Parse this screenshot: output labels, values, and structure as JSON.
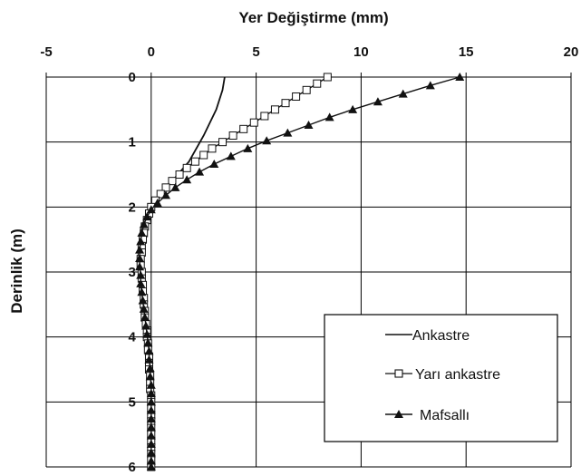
{
  "chart_data": {
    "type": "line",
    "title": "",
    "xlabel": "Yer Değiştirme (mm)",
    "ylabel": "Derinlik (m)",
    "xlim": [
      -5,
      20
    ],
    "ylim": [
      0,
      6
    ],
    "y_inverted": true,
    "x_axis_position": "top",
    "grid": true,
    "x_ticks": [
      -5,
      0,
      5,
      10,
      15,
      20
    ],
    "y_ticks": [
      0,
      1,
      2,
      3,
      4,
      5,
      6
    ],
    "x_tick_labels": [
      "-5",
      "0",
      "5",
      "10",
      "15",
      "20"
    ],
    "y_tick_labels": [
      "0",
      "1",
      "2",
      "3",
      "4",
      "5",
      "6"
    ],
    "legend": {
      "position": "bottom-right",
      "entries": [
        "Ankastre",
        "Yarı ankastre",
        "Mafsallı"
      ]
    },
    "colors": {
      "line": "#111111",
      "grid": "#000000",
      "background": "#ffffff"
    },
    "series": [
      {
        "name": "Ankastre",
        "marker": "none",
        "points": [
          [
            3.5,
            0
          ],
          [
            3.4,
            0.2
          ],
          [
            3.1,
            0.5
          ],
          [
            2.5,
            0.9
          ],
          [
            1.8,
            1.3
          ],
          [
            1.0,
            1.6
          ],
          [
            0.4,
            1.85
          ],
          [
            0.0,
            2.0
          ],
          [
            -0.3,
            2.2
          ],
          [
            -0.5,
            2.5
          ],
          [
            -0.5,
            2.8
          ],
          [
            -0.4,
            3.1
          ],
          [
            -0.3,
            3.5
          ],
          [
            -0.15,
            4.0
          ],
          [
            -0.05,
            4.5
          ],
          [
            0.0,
            5.0
          ],
          [
            0.0,
            5.5
          ],
          [
            0.0,
            6.0
          ]
        ]
      },
      {
        "name": "Yarı ankastre",
        "marker": "open-square",
        "points": [
          [
            8.4,
            0
          ],
          [
            7.9,
            0.1
          ],
          [
            7.4,
            0.2
          ],
          [
            6.9,
            0.3
          ],
          [
            6.4,
            0.4
          ],
          [
            5.9,
            0.5
          ],
          [
            5.4,
            0.6
          ],
          [
            4.9,
            0.7
          ],
          [
            4.4,
            0.8
          ],
          [
            3.9,
            0.9
          ],
          [
            3.4,
            1.0
          ],
          [
            2.9,
            1.1
          ],
          [
            2.5,
            1.2
          ],
          [
            2.1,
            1.3
          ],
          [
            1.7,
            1.4
          ],
          [
            1.35,
            1.5
          ],
          [
            1.0,
            1.6
          ],
          [
            0.7,
            1.7
          ],
          [
            0.45,
            1.8
          ],
          [
            0.2,
            1.9
          ],
          [
            0.0,
            2.0
          ],
          [
            -0.1,
            2.1
          ],
          [
            -0.2,
            2.2
          ],
          [
            -0.3,
            2.3
          ],
          [
            -0.35,
            2.4
          ],
          [
            -0.4,
            2.5
          ],
          [
            -0.45,
            2.6
          ],
          [
            -0.45,
            2.7
          ],
          [
            -0.5,
            2.8
          ],
          [
            -0.5,
            2.9
          ],
          [
            -0.45,
            3.0
          ],
          [
            -0.45,
            3.1
          ],
          [
            -0.4,
            3.2
          ],
          [
            -0.4,
            3.3
          ],
          [
            -0.35,
            3.4
          ],
          [
            -0.35,
            3.5
          ],
          [
            -0.3,
            3.6
          ],
          [
            -0.3,
            3.7
          ],
          [
            -0.25,
            3.8
          ],
          [
            -0.2,
            3.9
          ],
          [
            -0.2,
            4.0
          ],
          [
            -0.15,
            4.1
          ],
          [
            -0.15,
            4.2
          ],
          [
            -0.1,
            4.3
          ],
          [
            -0.1,
            4.4
          ],
          [
            -0.1,
            4.5
          ],
          [
            -0.05,
            4.6
          ],
          [
            -0.05,
            4.7
          ],
          [
            -0.05,
            4.8
          ],
          [
            0.0,
            4.9
          ],
          [
            0.0,
            5.0
          ],
          [
            0.0,
            5.1
          ],
          [
            0.0,
            5.2
          ],
          [
            0.0,
            5.3
          ],
          [
            0.0,
            5.4
          ],
          [
            0.0,
            5.5
          ],
          [
            0.0,
            5.6
          ],
          [
            0.0,
            5.7
          ],
          [
            0.0,
            5.8
          ],
          [
            0.0,
            5.9
          ],
          [
            0.0,
            6.0
          ]
        ]
      },
      {
        "name": "Mafsallı",
        "marker": "filled-triangle",
        "points": [
          [
            14.7,
            0
          ],
          [
            13.3,
            0.13
          ],
          [
            12.0,
            0.26
          ],
          [
            10.8,
            0.38
          ],
          [
            9.6,
            0.5
          ],
          [
            8.5,
            0.62
          ],
          [
            7.5,
            0.74
          ],
          [
            6.5,
            0.86
          ],
          [
            5.5,
            0.98
          ],
          [
            4.6,
            1.1
          ],
          [
            3.8,
            1.22
          ],
          [
            3.0,
            1.34
          ],
          [
            2.3,
            1.46
          ],
          [
            1.7,
            1.58
          ],
          [
            1.15,
            1.7
          ],
          [
            0.7,
            1.82
          ],
          [
            0.3,
            1.94
          ],
          [
            0.0,
            2.04
          ],
          [
            -0.2,
            2.15
          ],
          [
            -0.35,
            2.27
          ],
          [
            -0.45,
            2.4
          ],
          [
            -0.5,
            2.53
          ],
          [
            -0.55,
            2.66
          ],
          [
            -0.55,
            2.79
          ],
          [
            -0.55,
            2.92
          ],
          [
            -0.5,
            3.05
          ],
          [
            -0.5,
            3.18
          ],
          [
            -0.45,
            3.31
          ],
          [
            -0.4,
            3.44
          ],
          [
            -0.35,
            3.57
          ],
          [
            -0.3,
            3.7
          ],
          [
            -0.25,
            3.83
          ],
          [
            -0.2,
            3.96
          ],
          [
            -0.15,
            4.09
          ],
          [
            -0.1,
            4.22
          ],
          [
            -0.1,
            4.35
          ],
          [
            -0.05,
            4.48
          ],
          [
            -0.05,
            4.61
          ],
          [
            0.0,
            4.74
          ],
          [
            0.0,
            4.87
          ],
          [
            0.0,
            5.0
          ],
          [
            0.0,
            5.13
          ],
          [
            0.0,
            5.26
          ],
          [
            0.0,
            5.39
          ],
          [
            0.0,
            5.52
          ],
          [
            0.0,
            5.65
          ],
          [
            0.0,
            5.78
          ],
          [
            0.0,
            5.91
          ],
          [
            0.0,
            6.0
          ]
        ]
      }
    ]
  }
}
